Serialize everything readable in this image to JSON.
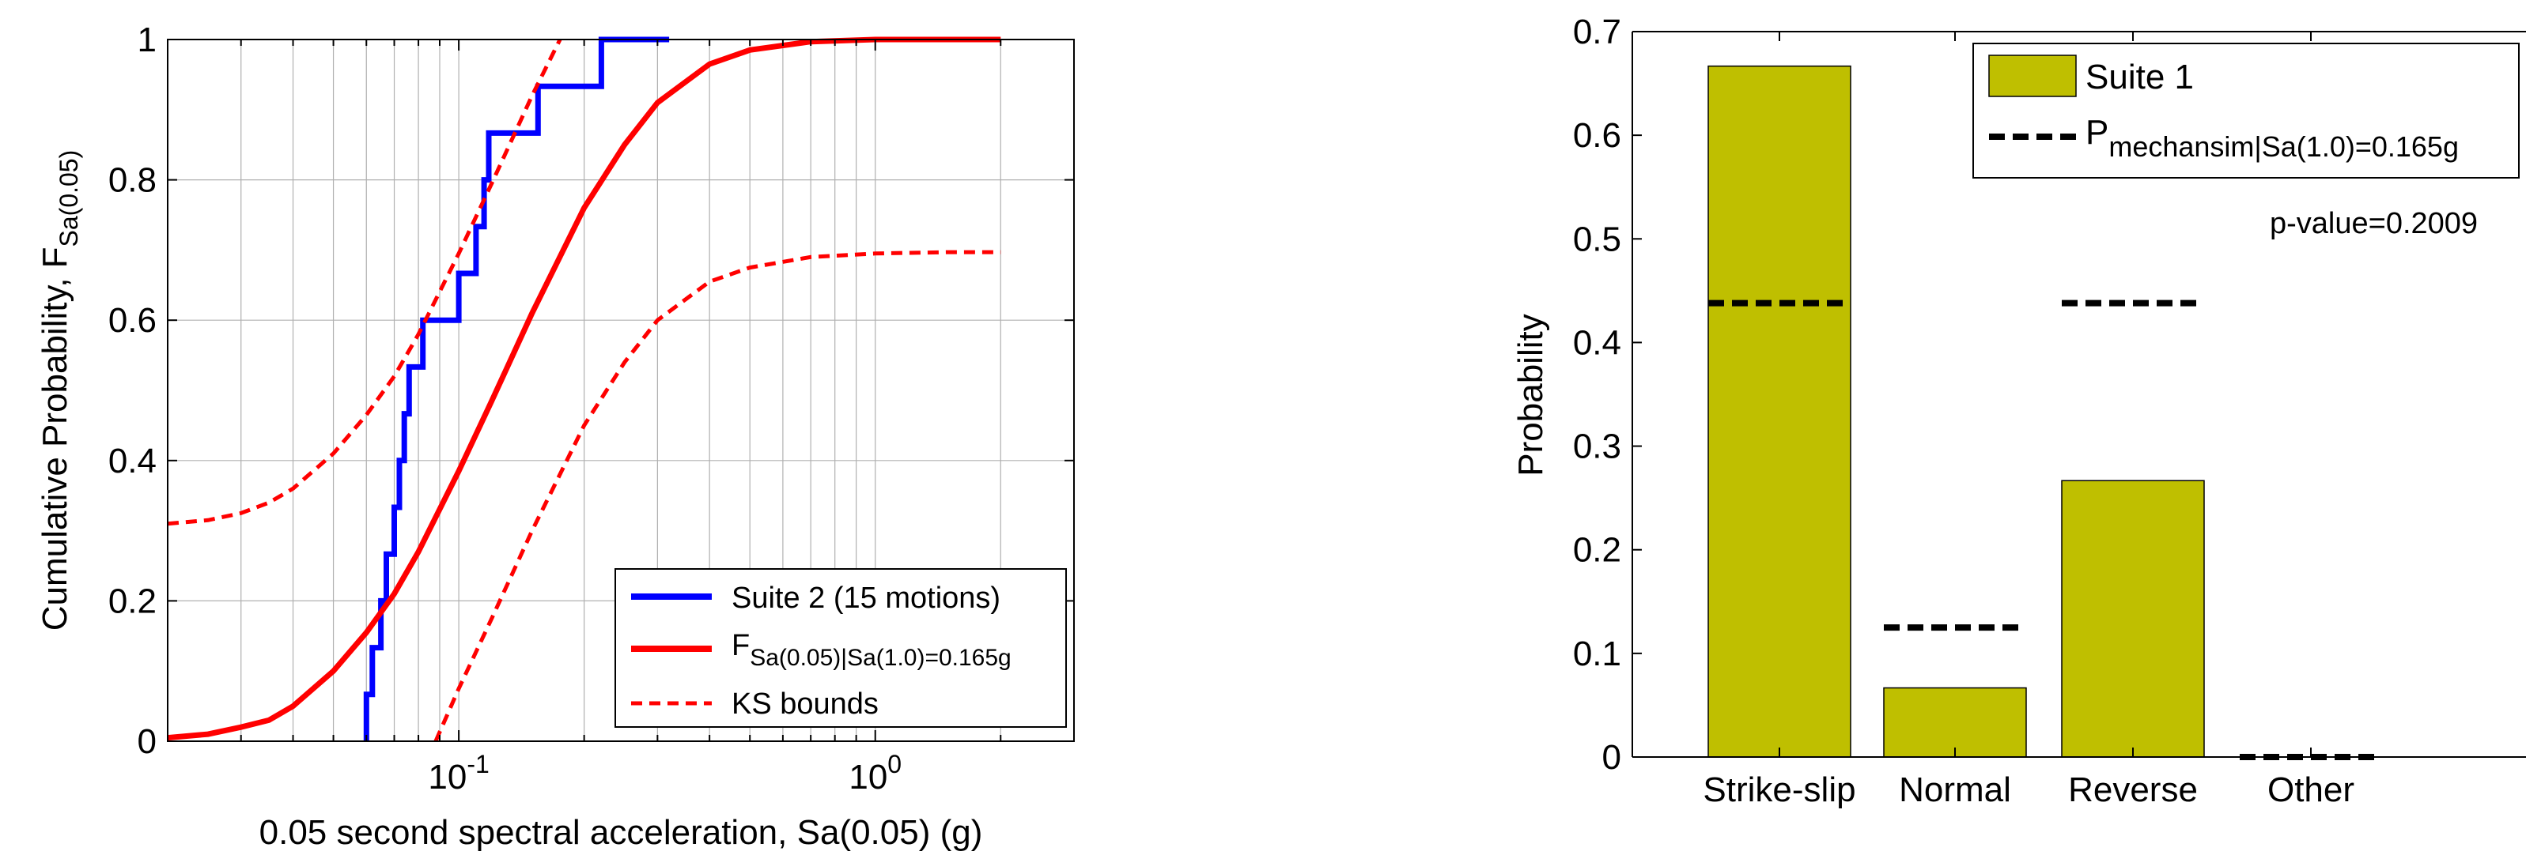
{
  "chart_data": [
    {
      "type": "line",
      "xscale": "log",
      "xlim": [
        0.02,
        3
      ],
      "ylim": [
        0,
        1
      ],
      "grid": true,
      "xlabel": "0.05 second spectral acceleration, Sa(0.05) (g)",
      "ylabel_main": "Cumulative Probability, F",
      "ylabel_sub": "Sa(0.05)",
      "yticks": [
        0,
        0.2,
        0.4,
        0.6,
        0.8,
        1
      ],
      "ytick_labels": [
        "0",
        "0.2",
        "0.4",
        "0.6",
        "0.8",
        "1"
      ],
      "xtick_labels": [
        {
          "base": "10",
          "exp": "-1",
          "value": 0.1
        },
        {
          "base": "10",
          "exp": "0",
          "value": 1
        }
      ],
      "legend_position": "bottom-right",
      "series": [
        {
          "name": "Suite 2 (15 motions)",
          "style": "step",
          "color": "#0000ff",
          "x": [
            0.06,
            0.06,
            0.062,
            0.062,
            0.065,
            0.065,
            0.067,
            0.067,
            0.07,
            0.07,
            0.072,
            0.072,
            0.074,
            0.074,
            0.076,
            0.076,
            0.082,
            0.082,
            0.1,
            0.1,
            0.11,
            0.11,
            0.115,
            0.115,
            0.118,
            0.118,
            0.122,
            0.122,
            0.155,
            0.155,
            0.22,
            0.22,
            0.32,
            0.32
          ],
          "y": [
            0,
            0.0667,
            0.0667,
            0.1333,
            0.1333,
            0.2,
            0.2,
            0.2667,
            0.2667,
            0.3333,
            0.3333,
            0.4,
            0.4,
            0.4667,
            0.4667,
            0.5333,
            0.5333,
            0.6,
            0.6,
            0.6667,
            0.6667,
            0.7333,
            0.7333,
            0.8,
            0.8,
            0.8667,
            0.8667,
            0.8667,
            0.8667,
            0.9333,
            0.9333,
            1.0,
            1.0,
            1.0
          ]
        },
        {
          "name": "F",
          "name_sub": "Sa(0.05)|Sa(1.0)=0.165g",
          "style": "solid",
          "color": "#ff0000",
          "x": [
            0.02,
            0.025,
            0.03,
            0.035,
            0.04,
            0.05,
            0.06,
            0.07,
            0.08,
            0.1,
            0.12,
            0.15,
            0.2,
            0.25,
            0.3,
            0.4,
            0.5,
            0.7,
            1.0,
            1.5,
            2.0
          ],
          "y": [
            0.005,
            0.01,
            0.02,
            0.03,
            0.05,
            0.1,
            0.155,
            0.21,
            0.27,
            0.385,
            0.485,
            0.61,
            0.76,
            0.85,
            0.91,
            0.965,
            0.985,
            0.997,
            1.0,
            1.0,
            1.0
          ]
        },
        {
          "name": "KS bounds",
          "style": "dashed",
          "color": "#ff0000",
          "x": [
            0.02,
            0.025,
            0.03,
            0.035,
            0.04,
            0.05,
            0.06,
            0.07,
            0.08,
            0.1,
            0.12,
            0.15,
            0.175
          ],
          "y": [
            0.31,
            0.315,
            0.325,
            0.34,
            0.36,
            0.41,
            0.465,
            0.52,
            0.58,
            0.695,
            0.795,
            0.92,
            1.0
          ]
        },
        {
          "name": "",
          "style": "dashed",
          "color": "#ff0000",
          "x": [
            0.088,
            0.1,
            0.12,
            0.15,
            0.2,
            0.25,
            0.3,
            0.4,
            0.5,
            0.7,
            1.0,
            1.5,
            2.0
          ],
          "y": [
            0,
            0.075,
            0.175,
            0.3,
            0.45,
            0.54,
            0.6,
            0.655,
            0.675,
            0.69,
            0.695,
            0.697,
            0.697
          ]
        }
      ]
    },
    {
      "type": "bar",
      "ylabel": "Probability",
      "ylim": [
        0,
        0.7
      ],
      "yticks": [
        0,
        0.1,
        0.2,
        0.3,
        0.4,
        0.5,
        0.6,
        0.7
      ],
      "ytick_labels": [
        "0",
        "0.1",
        "0.2",
        "0.3",
        "0.4",
        "0.5",
        "0.6",
        "0.7"
      ],
      "categories": [
        "Strike-slip",
        "Normal",
        "Reverse",
        "Other"
      ],
      "legend_position": "top-right",
      "bar_color": "#bfbf00",
      "series": [
        {
          "name": "Suite 1",
          "style": "bar",
          "values": [
            0.6667,
            0.0667,
            0.2667,
            0.0
          ]
        },
        {
          "name": "P",
          "name_sub": "mechansim|Sa(1.0)=0.165g",
          "style": "dashed",
          "values": [
            0.438,
            0.125,
            0.438,
            0.0
          ]
        }
      ],
      "annotation": "p-value=0.2009"
    }
  ]
}
